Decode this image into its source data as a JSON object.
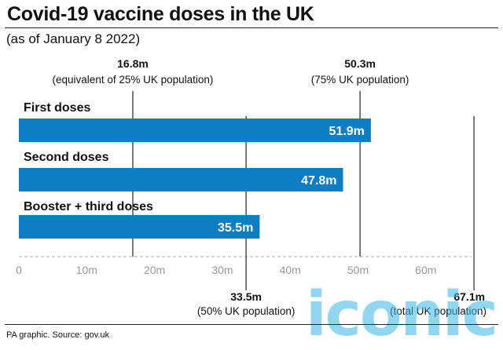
{
  "title": "Covid-19 vaccine doses in the UK",
  "subtitle": "(as of January 8 2022)",
  "footer": "PA graphic. Source: gov.uk",
  "watermark": "iconic",
  "colors": {
    "bar": "#0d7ec4",
    "bar_label": "#ffffff",
    "ref_line": "#222222",
    "axis_dash": "#bbbbbb",
    "tick_text": "#999999"
  },
  "chart_data": {
    "type": "bar",
    "orientation": "horizontal",
    "categories": [
      "First doses",
      "Second doses",
      "Booster + third doses"
    ],
    "values": [
      51.9,
      47.8,
      35.5
    ],
    "value_labels": [
      "51.9m",
      "47.8m",
      "35.5m"
    ],
    "xlim": [
      0,
      70
    ],
    "xticks": [
      0,
      10,
      20,
      30,
      40,
      50,
      60
    ],
    "xtick_labels": [
      "0",
      "10m",
      "20m",
      "30m",
      "40m",
      "50m",
      "60m"
    ],
    "reference_lines": [
      {
        "value": 16.8,
        "label": "16.8m",
        "sublabel": "(equivalent of 25% UK population)",
        "position": "top"
      },
      {
        "value": 50.3,
        "label": "50.3m",
        "sublabel": "(75% UK population)",
        "position": "top"
      },
      {
        "value": 33.5,
        "label": "33.5m",
        "sublabel": "(50% UK population)",
        "position": "bottom"
      },
      {
        "value": 67.1,
        "label": "67.1m",
        "sublabel": "(total UK population)",
        "position": "bottom"
      }
    ]
  }
}
